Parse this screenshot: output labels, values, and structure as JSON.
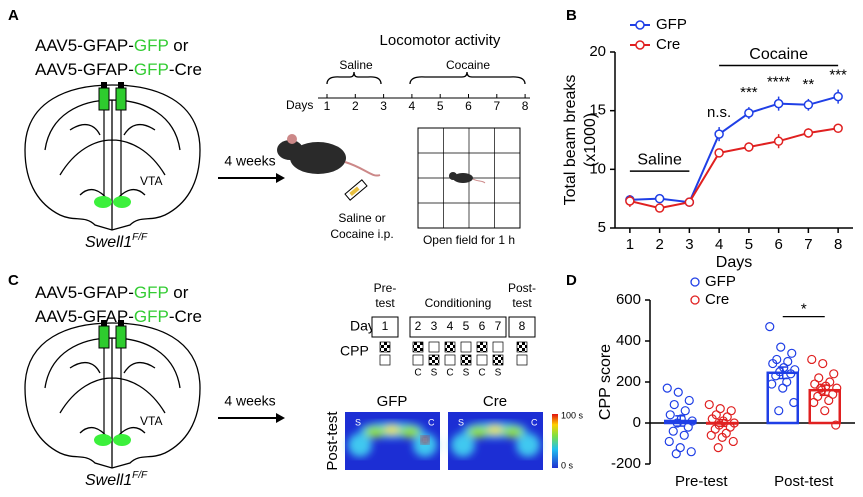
{
  "panels": {
    "a": {
      "label": "A",
      "construct": [
        [
          "AAV5-GFAP-",
          "GFP",
          " or"
        ],
        [
          "AAV5-GFAP-",
          "GFP",
          "-Cre"
        ]
      ],
      "region": "VTA",
      "genotype": [
        "Swell1",
        "F/F"
      ],
      "arrow": "4 weeks",
      "injection": [
        "Saline or",
        "Cocaine i.p."
      ],
      "timeline_title": "Locomotor activity",
      "phases": [
        "Saline",
        "Cocaine"
      ],
      "days_label": "Days",
      "days": [
        1,
        2,
        3,
        4,
        5,
        6,
        7,
        8
      ],
      "open_field": "Open field for 1 h"
    },
    "c": {
      "label": "C",
      "construct": [
        [
          "AAV5-GFAP-",
          "GFP",
          " or"
        ],
        [
          "AAV5-GFAP-",
          "GFP",
          "-Cre"
        ]
      ],
      "region": "VTA",
      "genotype": [
        "Swell1",
        "F/F"
      ],
      "arrow": "4 weeks",
      "phases": [
        [
          "Pre-",
          "test"
        ],
        [
          "Conditioning"
        ],
        [
          "Post-",
          "test"
        ]
      ],
      "days_label": "Days",
      "day_groups": [
        [
          1
        ],
        [
          2,
          3,
          4,
          5,
          6,
          7
        ],
        [
          8
        ]
      ],
      "cpp_label": "CPP",
      "pairings": [
        "C",
        "S",
        "C",
        "S",
        "C",
        "S"
      ],
      "heatmap_row": "Post-test",
      "heatmaps": [
        "GFP",
        "Cre"
      ],
      "chamber_labels": [
        "S",
        "C"
      ],
      "colorbar": [
        "100 s",
        "0 s"
      ]
    }
  },
  "chart_data": [
    {
      "type": "line",
      "panel_label": "B",
      "xlabel": "Days",
      "ylabel": [
        "Total beam breaks",
        "(x1000)"
      ],
      "x": [
        1,
        2,
        3,
        4,
        5,
        6,
        7,
        8
      ],
      "xlim": [
        0.5,
        8.5
      ],
      "xticks": [
        1,
        2,
        3,
        4,
        5,
        6,
        7,
        8
      ],
      "ylim": [
        5,
        20
      ],
      "yticks": [
        5,
        10,
        15,
        20
      ],
      "legend": "upper left",
      "series": [
        {
          "name": "GFP",
          "color": "#1f3fe6",
          "values": [
            7.4,
            7.5,
            7.2,
            13,
            14.8,
            15.6,
            15.5,
            16.2
          ],
          "errors": [
            0.4,
            0.3,
            0.3,
            0.6,
            0.5,
            0.6,
            0.5,
            0.6
          ]
        },
        {
          "name": "Cre",
          "color": "#e02020",
          "values": [
            7.3,
            6.7,
            7.2,
            11.4,
            11.9,
            12.4,
            13.1,
            13.5
          ],
          "errors": [
            0.5,
            0.3,
            0.3,
            0.3,
            0.4,
            0.6,
            0.4,
            0.3
          ]
        }
      ],
      "annotations": [
        {
          "x": 4,
          "text": "n.s."
        },
        {
          "x": 5,
          "text": "***"
        },
        {
          "x": 6,
          "text": "****"
        },
        {
          "x": 7,
          "text": "**"
        },
        {
          "x": 8,
          "text": "***"
        }
      ],
      "brackets": [
        {
          "text": "Saline",
          "from": 1,
          "to": 3
        },
        {
          "text": "Cocaine",
          "from": 4,
          "to": 8
        }
      ]
    },
    {
      "type": "bar",
      "panel_label": "D",
      "ylabel": "CPP score",
      "categories": [
        "Pre-test",
        "Post-test"
      ],
      "ylim": [
        -200,
        600
      ],
      "yticks": [
        -200,
        0,
        200,
        400,
        600
      ],
      "legend": "upper left",
      "series": [
        {
          "name": "GFP",
          "color": "#1f3fe6",
          "values": [
            10,
            245
          ],
          "errors": [
            25,
            28
          ],
          "points": [
            [
              170,
              150,
              110,
              90,
              60,
              40,
              20,
              10,
              0,
              -20,
              -40,
              -60,
              -90,
              -120,
              -140,
              -150
            ],
            [
              470,
              370,
              340,
              310,
              300,
              290,
              270,
              260,
              250,
              240,
              230,
              200,
              190,
              170,
              100,
              60
            ]
          ]
        },
        {
          "name": "Cre",
          "color": "#e02020",
          "values": [
            0,
            160
          ],
          "errors": [
            16,
            25
          ],
          "points": [
            [
              90,
              70,
              60,
              40,
              30,
              20,
              10,
              0,
              -10,
              -20,
              -30,
              -50,
              -60,
              -70,
              -90,
              -120
            ],
            [
              310,
              290,
              240,
              220,
              200,
              190,
              180,
              170,
              160,
              140,
              130,
              110,
              100,
              60,
              -10,
              170
            ]
          ]
        }
      ],
      "significance": [
        {
          "category": 1,
          "text": "*"
        }
      ]
    }
  ]
}
